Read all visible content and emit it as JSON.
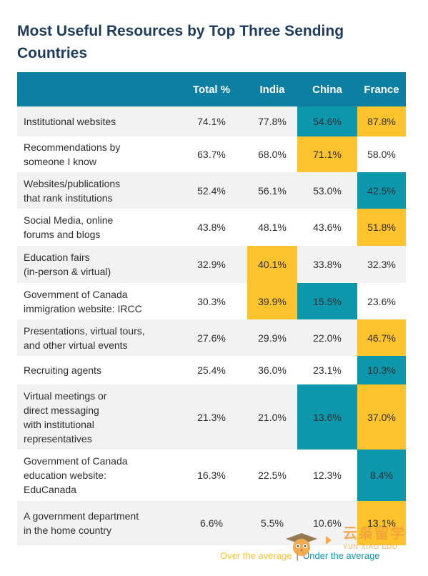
{
  "title": "Most Useful Resources by Top Three Sending Countries",
  "colors": {
    "header": "#0d7fa3",
    "over": "#fcc32c",
    "under": "#0d97ad",
    "title": "#1f3b5c"
  },
  "chart_data": {
    "type": "table",
    "title": "Most Useful Resources by Top Three Sending Countries",
    "columns": [
      "",
      "Total %",
      "India",
      "China",
      "France"
    ],
    "rows": [
      {
        "label": [
          "Institutional websites"
        ],
        "values": [
          "74.1%",
          "77.8%",
          "54.6%",
          "87.8%"
        ],
        "highlight": [
          null,
          null,
          "under",
          "over"
        ]
      },
      {
        "label": [
          "Recommendations by",
          "someone I know"
        ],
        "values": [
          "63.7%",
          "68.0%",
          "71.1%",
          "58.0%"
        ],
        "highlight": [
          null,
          null,
          "over",
          null
        ]
      },
      {
        "label": [
          "Websites/publications",
          "that rank institutions"
        ],
        "values": [
          "52.4%",
          "56.1%",
          "53.0%",
          "42.5%"
        ],
        "highlight": [
          null,
          null,
          null,
          "under"
        ]
      },
      {
        "label": [
          "Social Media, online",
          "forums and blogs"
        ],
        "values": [
          "43.8%",
          "48.1%",
          "43.6%",
          "51.8%"
        ],
        "highlight": [
          null,
          null,
          null,
          "over"
        ]
      },
      {
        "label": [
          "Education fairs",
          "(in-person & virtual)"
        ],
        "values": [
          "32.9%",
          "40.1%",
          "33.8%",
          "32.3%"
        ],
        "highlight": [
          null,
          "over",
          null,
          null
        ]
      },
      {
        "label": [
          "Government of Canada",
          "immigration website: IRCC"
        ],
        "values": [
          "30.3%",
          "39.9%",
          "15.5%",
          "23.6%"
        ],
        "highlight": [
          null,
          "over",
          "under",
          null
        ]
      },
      {
        "label": [
          "Presentations, virtual tours,",
          "and other virtual events"
        ],
        "values": [
          "27.6%",
          "29.9%",
          "22.0%",
          "46.7%"
        ],
        "highlight": [
          null,
          null,
          null,
          "over"
        ]
      },
      {
        "label": [
          "Recruiting agents"
        ],
        "values": [
          "25.4%",
          "36.0%",
          "23.1%",
          "10.3%"
        ],
        "highlight": [
          null,
          null,
          null,
          "under"
        ]
      },
      {
        "label": [
          "Virtual meetings or",
          "direct messaging",
          "with institutional",
          "representatives"
        ],
        "values": [
          "21.3%",
          "21.0%",
          "13.6%",
          "37.0%"
        ],
        "highlight": [
          null,
          null,
          "under",
          "over"
        ]
      },
      {
        "label": [
          "Government of Canada",
          "education website:",
          "EduCanada"
        ],
        "values": [
          "16.3%",
          "22.5%",
          "12.3%",
          "8.4%"
        ],
        "highlight": [
          null,
          null,
          null,
          "under"
        ]
      },
      {
        "label": [
          "A government department",
          "in the home country"
        ],
        "values": [
          "6.6%",
          "5.5%",
          "10.6%",
          "13.1%"
        ],
        "highlight": [
          null,
          null,
          null,
          "over"
        ]
      }
    ],
    "legend": {
      "over": "Over the average",
      "separator": "|",
      "under": "Under the average"
    }
  },
  "watermark": {
    "cn": "云枭留学",
    "en": "YUN XIAO EDU"
  }
}
